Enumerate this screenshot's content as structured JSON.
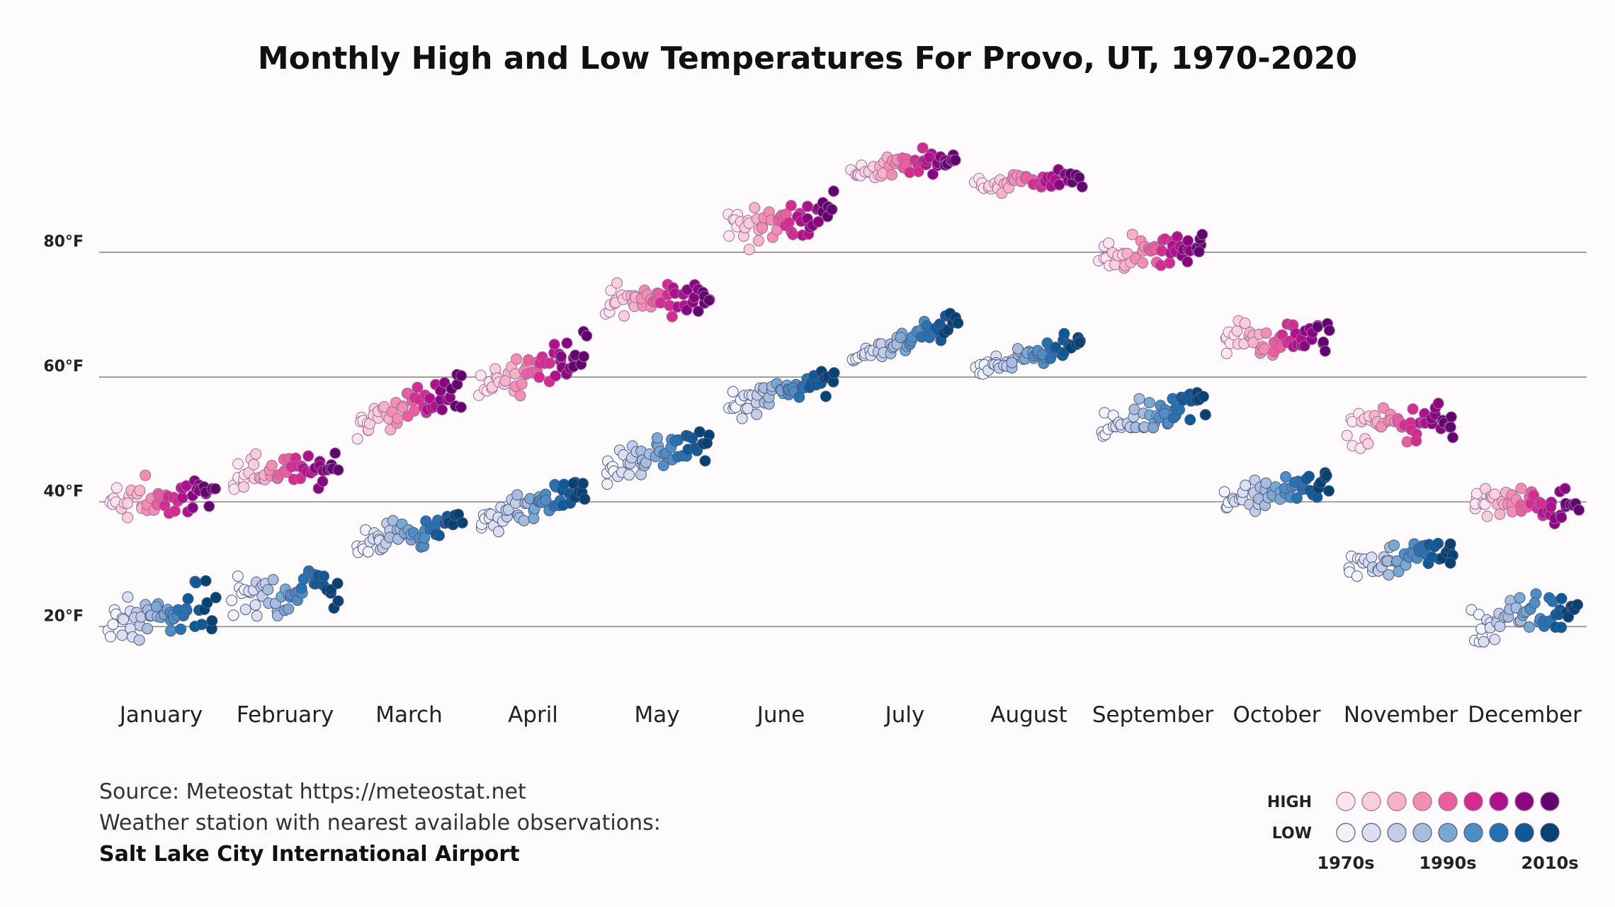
{
  "chart_data": {
    "type": "scatter",
    "title": "Monthly High and Low Temperatures For Provo, UT, 1970-2020",
    "xlabel": "",
    "ylabel": "",
    "y_unit": "°F",
    "ylim": [
      8,
      100
    ],
    "y_ticks": [
      20,
      40,
      60,
      80
    ],
    "y_tick_labels": [
      "20°F",
      "40°F",
      "60°F",
      "80°F"
    ],
    "gridlines": [
      20,
      40,
      60,
      80
    ],
    "categories": [
      "January",
      "February",
      "March",
      "April",
      "May",
      "June",
      "July",
      "August",
      "September",
      "October",
      "November",
      "December"
    ],
    "series": [
      {
        "name": "HIGH",
        "decade_colors": [
          "#fce6ec",
          "#f9d0d8",
          "#f6b3c3",
          "#f48eae",
          "#ec5f9c",
          "#d52a8e",
          "#b0108a",
          "#8a067f",
          "#62046e"
        ],
        "start_values": [
          40,
          44,
          52,
          59,
          72,
          84,
          93,
          91,
          79,
          66,
          52,
          40
        ],
        "end_values": [
          41,
          46,
          58,
          64,
          73,
          86,
          95,
          92,
          81,
          66,
          53,
          39
        ],
        "spread": [
          4,
          3.5,
          3.5,
          3.5,
          3.5,
          4,
          2.5,
          2,
          3.5,
          3.5,
          3.5,
          3.5
        ],
        "trend": [
          2,
          4,
          7,
          6,
          6,
          5,
          4,
          3,
          3,
          2,
          3,
          0
        ],
        "stroke": "#a06aa4"
      },
      {
        "name": "LOW",
        "decade_colors": [
          "#f1f3f9",
          "#dcdff0",
          "#c4cde6",
          "#a6bddc",
          "#79a9d1",
          "#4d8ec4",
          "#2573b1",
          "#0d5a97",
          "#044372"
        ],
        "start_values": [
          20,
          24,
          33,
          37,
          45,
          55,
          63,
          61,
          51,
          40,
          30,
          20
        ],
        "end_values": [
          23,
          27,
          37,
          42,
          50,
          60,
          69,
          66,
          57,
          43,
          32,
          23
        ],
        "spread": [
          5,
          4.5,
          3,
          3,
          3,
          3,
          2,
          2,
          3,
          3,
          3,
          4
        ],
        "trend": [
          6,
          6,
          6,
          6,
          7,
          7,
          7,
          7,
          6,
          3,
          3,
          2
        ],
        "stroke": "#4e5a86"
      }
    ],
    "years": [
      1970,
      2020
    ],
    "legend": {
      "high_label": "HIGH",
      "low_label": "LOW",
      "decade_labels": [
        "1970s",
        "1990s",
        "2010s"
      ],
      "placement": "bottom-right"
    },
    "source": {
      "line1": "Source: Meteostat https://meteostat.net",
      "line2": "Weather station with nearest available observations:",
      "line3": "Salt Lake City International Airport"
    }
  }
}
